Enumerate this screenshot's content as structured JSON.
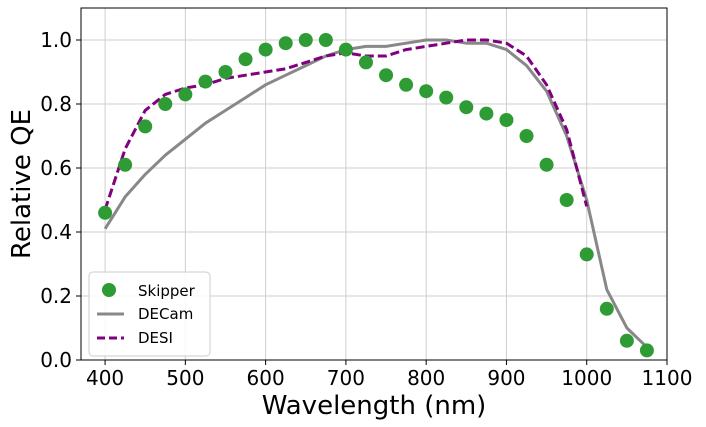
{
  "chart_data": {
    "type": "line",
    "xlabel": "Wavelength (nm)",
    "ylabel": "Relative QE",
    "xlim": [
      370,
      1100
    ],
    "ylim": [
      0.0,
      1.1
    ],
    "xticks": [
      "400",
      "500",
      "600",
      "700",
      "800",
      "900",
      "1000",
      "1100"
    ],
    "yticks": [
      "0.0",
      "0.2",
      "0.4",
      "0.6",
      "0.8",
      "1.0"
    ],
    "xtick_values": [
      400,
      500,
      600,
      700,
      800,
      900,
      1000,
      1100
    ],
    "ytick_values": [
      0.0,
      0.2,
      0.4,
      0.6,
      0.8,
      1.0
    ],
    "grid": true,
    "legend_position": "lower-left",
    "series": [
      {
        "name": "Skipper",
        "style": "scatter",
        "color": "#2e9b34",
        "x": [
          400,
          425,
          450,
          475,
          500,
          525,
          550,
          575,
          600,
          625,
          650,
          675,
          700,
          725,
          750,
          775,
          800,
          825,
          850,
          875,
          900,
          925,
          950,
          975,
          1000,
          1025,
          1050,
          1075
        ],
        "y": [
          0.46,
          0.61,
          0.73,
          0.8,
          0.83,
          0.87,
          0.9,
          0.94,
          0.97,
          0.99,
          1.0,
          1.0,
          0.97,
          0.93,
          0.89,
          0.86,
          0.84,
          0.82,
          0.79,
          0.77,
          0.75,
          0.7,
          0.61,
          0.5,
          0.33,
          0.16,
          0.06,
          0.03
        ]
      },
      {
        "name": "DECam",
        "style": "line",
        "color": "#888888",
        "x": [
          400,
          425,
          450,
          475,
          500,
          525,
          550,
          575,
          600,
          625,
          650,
          675,
          700,
          725,
          750,
          775,
          800,
          825,
          850,
          875,
          900,
          925,
          950,
          975,
          1000,
          1025,
          1050,
          1075
        ],
        "y": [
          0.41,
          0.51,
          0.58,
          0.64,
          0.69,
          0.74,
          0.78,
          0.82,
          0.86,
          0.89,
          0.92,
          0.95,
          0.97,
          0.98,
          0.98,
          0.99,
          1.0,
          1.0,
          0.99,
          0.99,
          0.97,
          0.92,
          0.84,
          0.7,
          0.5,
          0.22,
          0.1,
          0.04
        ]
      },
      {
        "name": "DESI",
        "style": "dashed",
        "color": "#800080",
        "x": [
          400,
          425,
          450,
          475,
          500,
          525,
          550,
          575,
          600,
          625,
          650,
          675,
          700,
          725,
          750,
          775,
          800,
          825,
          850,
          875,
          900,
          925,
          950,
          975,
          1000
        ],
        "y": [
          0.47,
          0.66,
          0.78,
          0.83,
          0.85,
          0.86,
          0.88,
          0.89,
          0.9,
          0.91,
          0.93,
          0.95,
          0.96,
          0.95,
          0.95,
          0.97,
          0.98,
          0.99,
          1.0,
          1.0,
          0.99,
          0.95,
          0.86,
          0.72,
          0.48
        ]
      }
    ]
  }
}
